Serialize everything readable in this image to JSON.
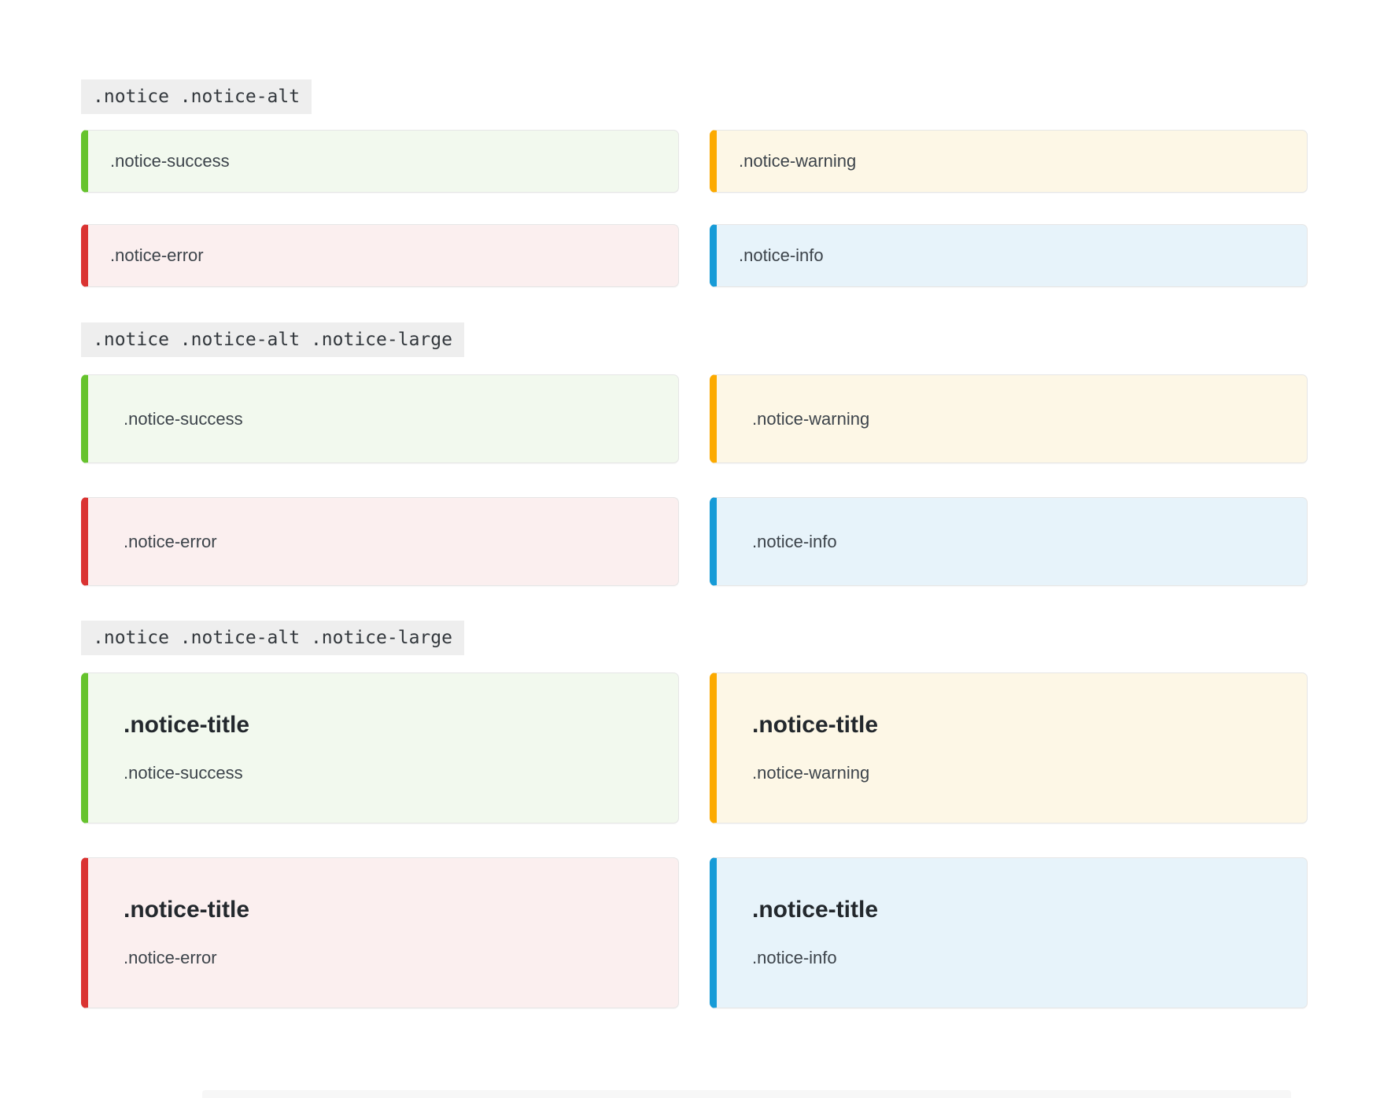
{
  "page": {
    "background": "#ffffff"
  },
  "colors": {
    "chip_bg": "#eeeeee",
    "chip_text": "#32373c",
    "body_text": "#3c434a",
    "title_text": "#23282d",
    "box_border": "#e6e6e6",
    "success_border": "#66c32d",
    "success_bg": "#f2f9ee",
    "warning_border": "#fcaa00",
    "warning_bg": "#fdf7e6",
    "error_border": "#da3332",
    "error_bg": "#fbefef",
    "info_border": "#169bd7",
    "info_bg": "#e7f3fa"
  },
  "sections": [
    {
      "label": ".notice .notice-alt",
      "notices": [
        {
          "type": "success",
          "body": ".notice-success"
        },
        {
          "type": "warning",
          "body": ".notice-warning"
        },
        {
          "type": "error",
          "body": ".notice-error"
        },
        {
          "type": "info",
          "body": ".notice-info"
        }
      ]
    },
    {
      "label": ".notice .notice-alt .notice-large",
      "notices": [
        {
          "type": "success",
          "body": ".notice-success"
        },
        {
          "type": "warning",
          "body": ".notice-warning"
        },
        {
          "type": "error",
          "body": ".notice-error"
        },
        {
          "type": "info",
          "body": ".notice-info"
        }
      ]
    },
    {
      "label": ".notice .notice-alt .notice-large",
      "notices": [
        {
          "type": "success",
          "title": ".notice-title",
          "body": ".notice-success"
        },
        {
          "type": "warning",
          "title": ".notice-title",
          "body": ".notice-warning"
        },
        {
          "type": "error",
          "title": ".notice-title",
          "body": ".notice-error"
        },
        {
          "type": "info",
          "title": ".notice-title",
          "body": ".notice-info"
        }
      ]
    }
  ]
}
